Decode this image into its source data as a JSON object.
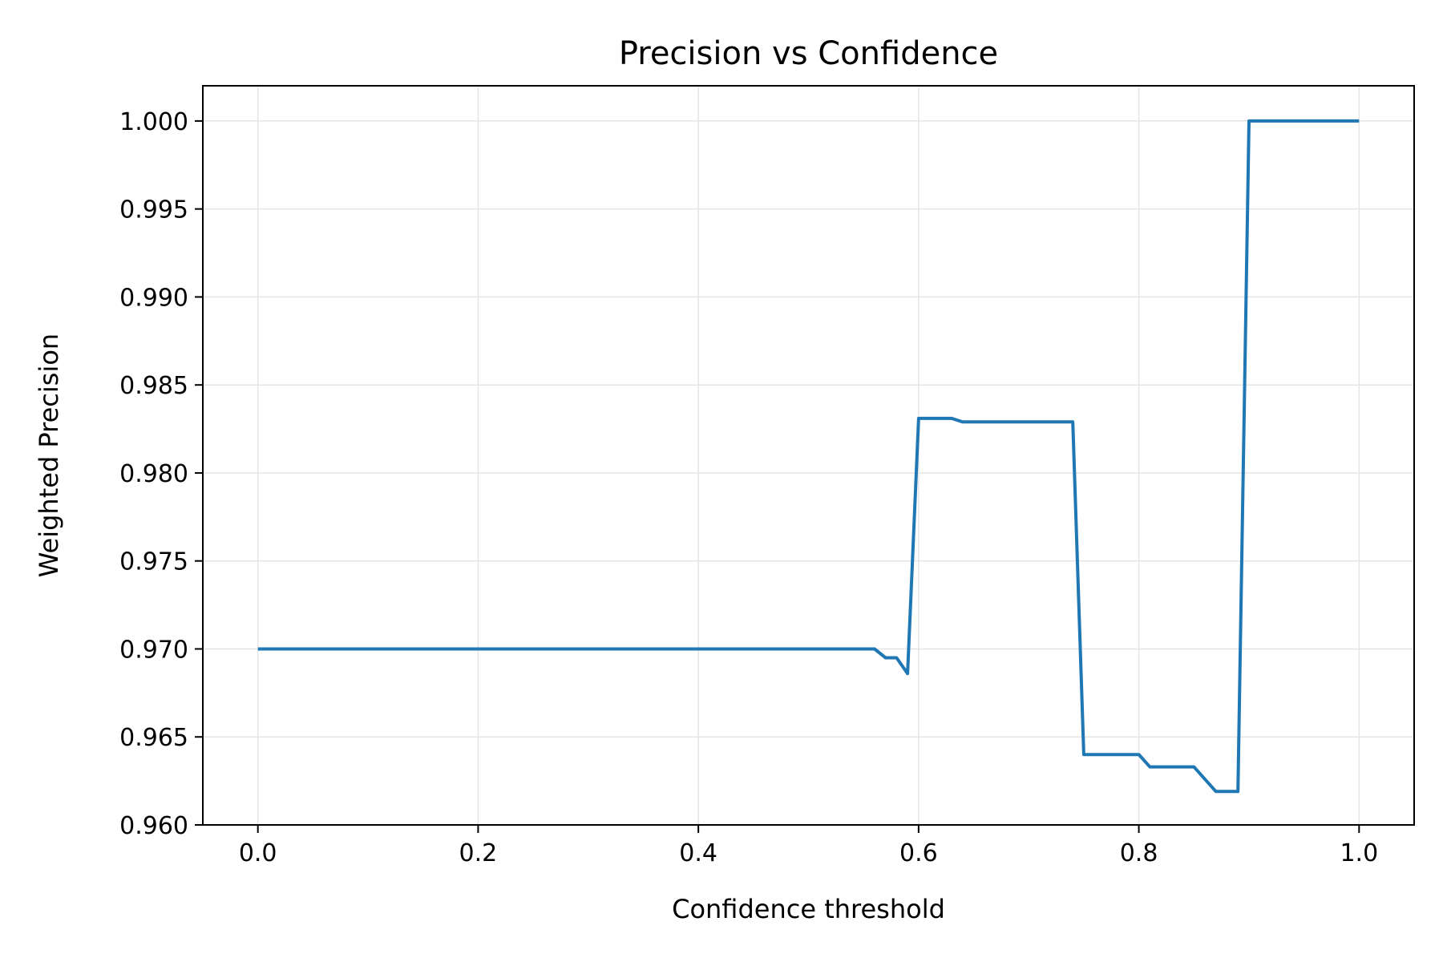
{
  "chart_data": {
    "type": "line",
    "title": "Precision vs Confidence",
    "xlabel": "Confidence threshold",
    "ylabel": "Weighted Precision",
    "xlim": [
      -0.05,
      1.05
    ],
    "ylim": [
      0.96,
      1.002
    ],
    "x_ticks": [
      "0.0",
      "0.2",
      "0.4",
      "0.6",
      "0.8",
      "1.0"
    ],
    "y_ticks": [
      "0.960",
      "0.965",
      "0.970",
      "0.975",
      "0.980",
      "0.985",
      "0.990",
      "0.995",
      "1.000"
    ],
    "grid": true,
    "color": "#1f77b4",
    "series": [
      {
        "x": [
          0.0,
          0.56,
          0.57,
          0.58,
          0.59,
          0.6,
          0.61,
          0.62,
          0.63,
          0.64,
          0.65,
          0.7,
          0.74,
          0.75,
          0.76,
          0.8,
          0.81,
          0.85,
          0.86,
          0.87,
          0.88,
          0.89,
          0.9,
          1.0
        ],
        "y": [
          0.97,
          0.97,
          0.9695,
          0.9695,
          0.9686,
          0.9831,
          0.9831,
          0.9831,
          0.9831,
          0.9829,
          0.9829,
          0.9829,
          0.9829,
          0.964,
          0.964,
          0.964,
          0.9633,
          0.9633,
          0.9626,
          0.9619,
          0.9619,
          0.9619,
          1.0,
          1.0
        ]
      }
    ]
  }
}
